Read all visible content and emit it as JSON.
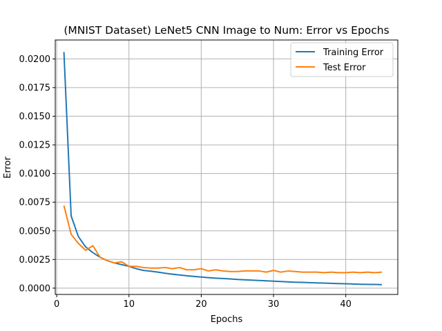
{
  "chart_data": {
    "type": "line",
    "title": "(MNIST Dataset) LeNet5 CNN Image to Num: Error vs Epochs",
    "xlabel": "Epochs",
    "ylabel": "Error",
    "xlim": [
      -0.2,
      47.2
    ],
    "ylim": [
      -0.00055,
      0.02165
    ],
    "x_ticks": [
      0,
      10,
      20,
      30,
      40
    ],
    "x_tick_labels": [
      "0",
      "10",
      "20",
      "30",
      "40"
    ],
    "y_ticks": [
      0.0,
      0.0025,
      0.005,
      0.0075,
      0.01,
      0.0125,
      0.015,
      0.0175,
      0.02
    ],
    "y_tick_labels": [
      "0.0000",
      "0.0025",
      "0.0050",
      "0.0075",
      "0.0100",
      "0.0125",
      "0.0150",
      "0.0175",
      "0.0200"
    ],
    "grid": true,
    "legend_position": "top-right",
    "x": [
      1,
      2,
      3,
      4,
      5,
      6,
      7,
      8,
      9,
      10,
      11,
      12,
      13,
      14,
      15,
      16,
      17,
      18,
      19,
      20,
      21,
      22,
      23,
      24,
      25,
      26,
      27,
      28,
      29,
      30,
      31,
      32,
      33,
      34,
      35,
      36,
      37,
      38,
      39,
      40,
      41,
      42,
      43,
      44,
      45
    ],
    "series": [
      {
        "name": "Training Error",
        "color": "#1f77b4",
        "values": [
          0.0206,
          0.0063,
          0.0045,
          0.0036,
          0.0031,
          0.0027,
          0.0024,
          0.0022,
          0.00205,
          0.0019,
          0.0017,
          0.00155,
          0.00148,
          0.0014,
          0.0013,
          0.00122,
          0.00115,
          0.00108,
          0.00102,
          0.00097,
          0.00092,
          0.00087,
          0.00084,
          0.0008,
          0.00076,
          0.00073,
          0.0007,
          0.00067,
          0.00064,
          0.00061,
          0.00058,
          0.00055,
          0.00052,
          0.0005,
          0.00048,
          0.00046,
          0.00044,
          0.00042,
          0.0004,
          0.00038,
          0.00036,
          0.00034,
          0.00033,
          0.00032,
          0.00031
        ]
      },
      {
        "name": "Test Error",
        "color": "#ff7f0e",
        "values": [
          0.0072,
          0.0047,
          0.0039,
          0.0033,
          0.0037,
          0.0027,
          0.0024,
          0.0022,
          0.0023,
          0.0019,
          0.0019,
          0.0018,
          0.00175,
          0.00175,
          0.0018,
          0.0017,
          0.0018,
          0.0016,
          0.0016,
          0.0017,
          0.0015,
          0.0016,
          0.0015,
          0.00145,
          0.00145,
          0.0015,
          0.0015,
          0.0015,
          0.0014,
          0.00155,
          0.0014,
          0.0015,
          0.00145,
          0.0014,
          0.0014,
          0.0014,
          0.00135,
          0.0014,
          0.00135,
          0.00135,
          0.0014,
          0.00135,
          0.0014,
          0.00135,
          0.0014
        ]
      }
    ]
  }
}
